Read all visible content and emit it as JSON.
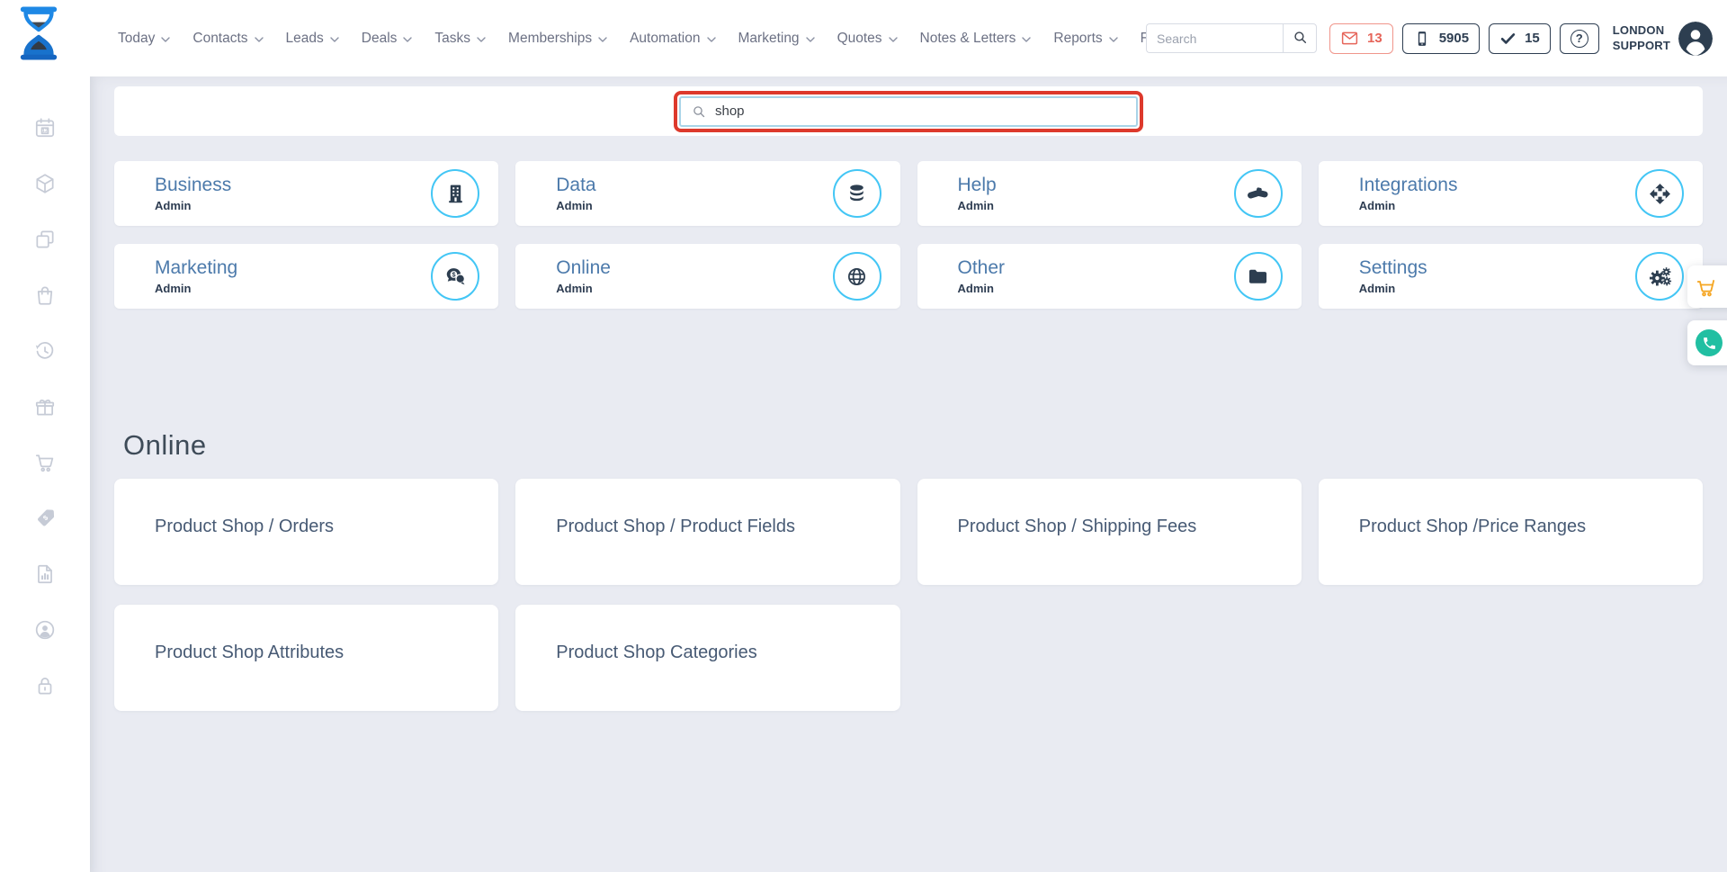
{
  "header": {
    "nav": [
      {
        "label": "Today",
        "chevron": true
      },
      {
        "label": "Contacts",
        "chevron": true
      },
      {
        "label": "Leads",
        "chevron": true
      },
      {
        "label": "Deals",
        "chevron": true
      },
      {
        "label": "Tasks",
        "chevron": true
      },
      {
        "label": "Memberships",
        "chevron": true
      },
      {
        "label": "Automation",
        "chevron": true
      },
      {
        "label": "Marketing",
        "chevron": true
      },
      {
        "label": "Quotes",
        "chevron": true
      },
      {
        "label": "Notes & Letters",
        "chevron": true
      },
      {
        "label": "Reports",
        "chevron": true
      },
      {
        "label": "Files",
        "chevron": false
      }
    ],
    "search": {
      "placeholder": "Search"
    },
    "badges": [
      {
        "name": "messages",
        "icon": "mail",
        "count": "13",
        "style": "red"
      },
      {
        "name": "calls",
        "icon": "mobile",
        "count": "5905",
        "style": "navy"
      },
      {
        "name": "completed",
        "icon": "check",
        "count": "15",
        "style": "navy"
      }
    ],
    "help_label": "?",
    "user": {
      "name_line1": "LONDON",
      "name_line2": "SUPPORT"
    }
  },
  "sidebar": {
    "items": [
      "calendar",
      "products-cube",
      "copy",
      "shopping-bag",
      "history",
      "gift",
      "cart",
      "price-tag",
      "report",
      "account",
      "lock"
    ]
  },
  "main": {
    "admin_search": {
      "value": "shop"
    },
    "categories": [
      {
        "title": "Business",
        "subtitle": "Admin",
        "icon": "building"
      },
      {
        "title": "Data",
        "subtitle": "Admin",
        "icon": "database"
      },
      {
        "title": "Help",
        "subtitle": "Admin",
        "icon": "handshake"
      },
      {
        "title": "Integrations",
        "subtitle": "Admin",
        "icon": "move-arrows"
      },
      {
        "title": "Marketing",
        "subtitle": "Admin",
        "icon": "chat-money"
      },
      {
        "title": "Online",
        "subtitle": "Admin",
        "icon": "globe"
      },
      {
        "title": "Other",
        "subtitle": "Admin",
        "icon": "folder"
      },
      {
        "title": "Settings",
        "subtitle": "Admin",
        "icon": "gears"
      }
    ],
    "section": {
      "heading": "Online",
      "cards": [
        {
          "title": "Product Shop / Orders"
        },
        {
          "title": "Product Shop / Product Fields"
        },
        {
          "title": "Product Shop / Shipping Fees"
        },
        {
          "title": "Product Shop /Price Ranges"
        },
        {
          "title": "Product Shop Attributes"
        },
        {
          "title": "Product Shop Categories"
        }
      ]
    }
  },
  "floating": [
    {
      "name": "cart-widget",
      "icon": "cart-orange"
    },
    {
      "name": "phone-widget",
      "icon": "phone-green"
    }
  ],
  "colors": {
    "highlight_red": "#dd392c",
    "accent_cyan": "#43c6f5",
    "navy": "#2d3e50",
    "badge_red": "#e66459",
    "cart_orange": "#f5a623",
    "phone_teal": "#21bfa2",
    "content_bg": "#e9ebf2"
  }
}
